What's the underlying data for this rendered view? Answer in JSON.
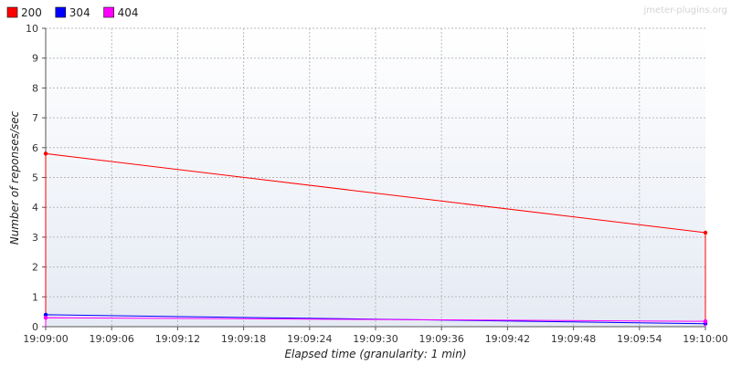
{
  "watermark": "jmeter-plugins.org",
  "chart_data": {
    "type": "line",
    "title": "",
    "xlabel": "Elapsed time (granularity: 1 min)",
    "ylabel": "Number of reponses/sec",
    "x": [
      "19:09:00",
      "19:10:00"
    ],
    "x_ticks": [
      "19:09:00",
      "19:09:06",
      "19:09:12",
      "19:09:18",
      "19:09:24",
      "19:09:30",
      "19:09:36",
      "19:09:42",
      "19:09:48",
      "19:09:54",
      "19:10:00"
    ],
    "ylim": [
      0,
      10
    ],
    "y_ticks": [
      0,
      1,
      2,
      3,
      4,
      5,
      6,
      7,
      8,
      9,
      10
    ],
    "grid": true,
    "legend_position": "top-left",
    "series": [
      {
        "name": "200",
        "color": "#ff0000",
        "values": [
          5.8,
          3.15
        ]
      },
      {
        "name": "304",
        "color": "#0000ff",
        "values": [
          0.4,
          0.1
        ]
      },
      {
        "name": "404",
        "color": "#ff00ff",
        "values": [
          0.3,
          0.18
        ]
      }
    ]
  }
}
